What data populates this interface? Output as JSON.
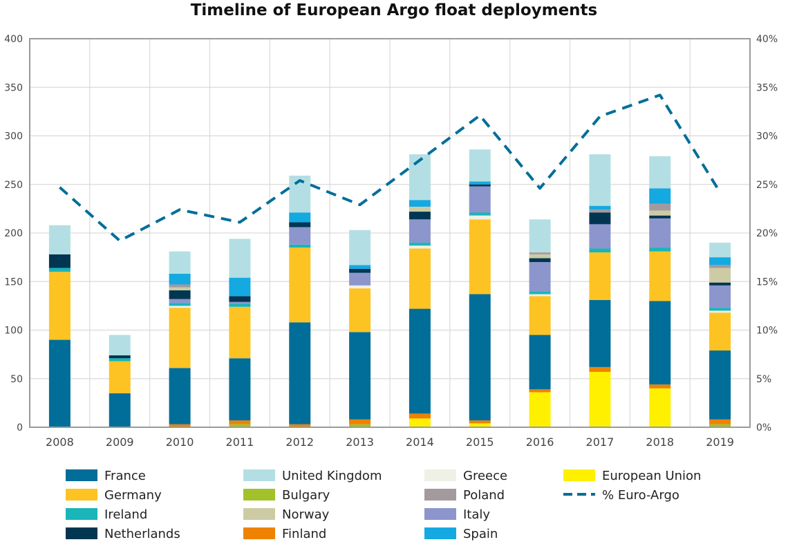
{
  "chart_data": {
    "type": "bar",
    "stacked": true,
    "title": "Timeline of European Argo float deployments",
    "xlabel": "",
    "ylabel": "",
    "ylim": [
      0,
      400
    ],
    "y_ticks": [
      "0",
      "50",
      "100",
      "150",
      "200",
      "250",
      "300",
      "350",
      "400"
    ],
    "y2lim": [
      0,
      40
    ],
    "y2_ticks": [
      "0%",
      "5%",
      "10%",
      "15%",
      "20%",
      "25%",
      "30%",
      "35%",
      "40%"
    ],
    "grid": true,
    "legend_position": "bottom",
    "categories": [
      "2008",
      "2009",
      "2010",
      "2011",
      "2012",
      "2013",
      "2014",
      "2015",
      "2016",
      "2017",
      "2018",
      "2019"
    ],
    "series": [
      {
        "name": "European Union",
        "color": "#fff000",
        "values": [
          0,
          0,
          0,
          0,
          0,
          0,
          9,
          4,
          36,
          57,
          40,
          0
        ]
      },
      {
        "name": "Bulgary",
        "color": "#a2c12b",
        "values": [
          0,
          0,
          0,
          3,
          0,
          3,
          0,
          0,
          0,
          0,
          0,
          3
        ]
      },
      {
        "name": "Finland",
        "color": "#ef8200",
        "values": [
          0,
          0,
          3,
          4,
          3,
          5,
          5,
          3,
          3,
          5,
          4,
          5
        ]
      },
      {
        "name": "France",
        "color": "#006e99",
        "values": [
          90,
          35,
          58,
          64,
          105,
          90,
          108,
          130,
          56,
          69,
          86,
          71
        ]
      },
      {
        "name": "Germany",
        "color": "#fdc323",
        "values": [
          70,
          33,
          62,
          53,
          77,
          45,
          62,
          77,
          40,
          49,
          51,
          39
        ]
      },
      {
        "name": "Greece",
        "color": "#eff0e6",
        "values": [
          0,
          0,
          2,
          0,
          0,
          3,
          3,
          4,
          2,
          0,
          0,
          2
        ]
      },
      {
        "name": "Ireland",
        "color": "#19b5b8",
        "values": [
          4,
          3,
          3,
          3,
          3,
          0,
          3,
          3,
          3,
          4,
          4,
          3
        ]
      },
      {
        "name": "Italy",
        "color": "#8c96cc",
        "values": [
          0,
          0,
          4,
          2,
          18,
          13,
          24,
          27,
          30,
          25,
          30,
          23
        ]
      },
      {
        "name": "Netherlands",
        "color": "#003652",
        "values": [
          14,
          3,
          9,
          6,
          5,
          4,
          8,
          2,
          4,
          12,
          3,
          3
        ]
      },
      {
        "name": "Norway",
        "color": "#cdcba4",
        "values": [
          0,
          0,
          3,
          0,
          0,
          0,
          5,
          0,
          4,
          0,
          5,
          15
        ]
      },
      {
        "name": "Poland",
        "color": "#a39a9e",
        "values": [
          0,
          0,
          3,
          0,
          0,
          0,
          0,
          0,
          2,
          3,
          7,
          3
        ]
      },
      {
        "name": "Spain",
        "color": "#15a9e1",
        "values": [
          0,
          0,
          11,
          19,
          10,
          4,
          7,
          3,
          0,
          4,
          16,
          8
        ]
      },
      {
        "name": "United Kingdom",
        "color": "#b3dfe4",
        "values": [
          30,
          21,
          23,
          40,
          38,
          36,
          47,
          33,
          34,
          53,
          33,
          15
        ]
      }
    ],
    "line_series": {
      "name": "% Euro-Argo",
      "color": "#006e99",
      "axis": "right",
      "values": [
        24.7,
        19.2,
        22.4,
        21.1,
        25.4,
        22.9,
        27.5,
        32.1,
        24.6,
        32.0,
        34.2,
        24.2
      ]
    },
    "legend_columns": [
      [
        "France",
        "Germany",
        "Ireland",
        "Netherlands"
      ],
      [
        "United Kingdom",
        "Bulgary",
        "Norway",
        "Finland"
      ],
      [
        "Greece",
        "Poland",
        "Italy",
        "Spain"
      ],
      [
        "European Union",
        "% Euro-Argo"
      ]
    ]
  }
}
